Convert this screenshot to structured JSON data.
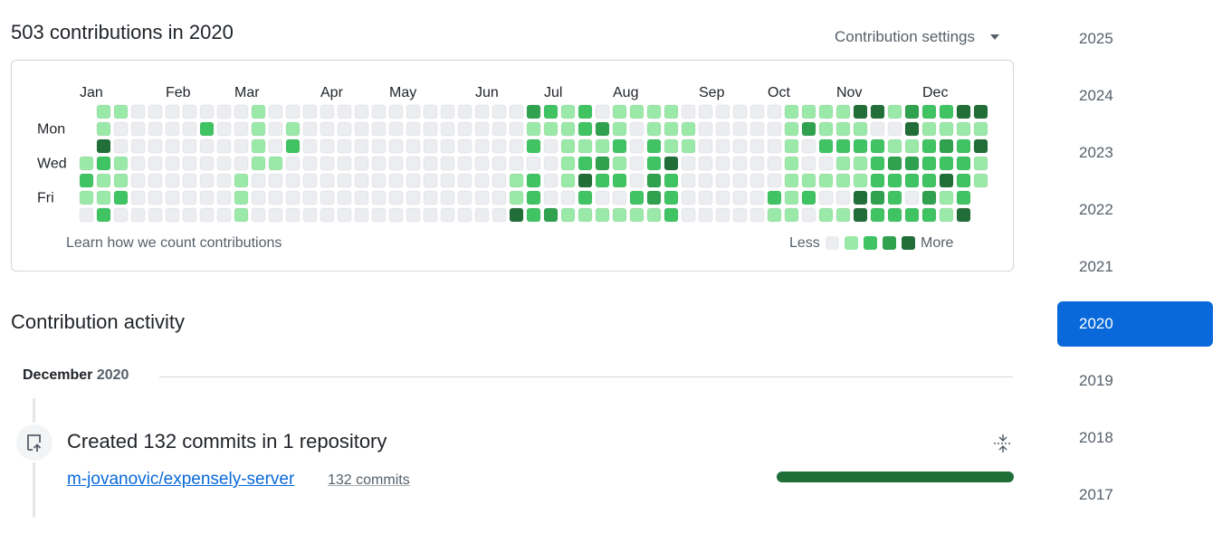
{
  "header": {
    "title": "503 contributions in 2020",
    "settings": "Contribution settings"
  },
  "calendar": {
    "months": [
      "Jan",
      "Feb",
      "Mar",
      "Apr",
      "May",
      "Jun",
      "Jul",
      "Aug",
      "Sep",
      "Oct",
      "Nov",
      "Dec"
    ],
    "weekdays": [
      null,
      "Mon",
      null,
      "Wed",
      null,
      "Fri",
      null
    ],
    "level_colors": [
      "#ebedf0",
      "#9be9a8",
      "#40c463",
      "#30a14e",
      "#216e39"
    ],
    "weeks": [
      [
        null,
        null,
        null,
        1,
        2,
        1,
        0
      ],
      [
        1,
        1,
        4,
        2,
        1,
        1,
        2
      ],
      [
        1,
        0,
        0,
        1,
        1,
        2,
        0
      ],
      [
        0,
        0,
        0,
        0,
        0,
        0,
        0
      ],
      [
        0,
        0,
        0,
        0,
        0,
        0,
        0
      ],
      [
        0,
        0,
        0,
        0,
        0,
        0,
        0
      ],
      [
        0,
        0,
        0,
        0,
        0,
        0,
        0
      ],
      [
        0,
        2,
        0,
        0,
        0,
        0,
        0
      ],
      [
        0,
        0,
        0,
        0,
        0,
        0,
        0
      ],
      [
        0,
        0,
        0,
        0,
        1,
        1,
        1
      ],
      [
        1,
        1,
        1,
        1,
        0,
        0,
        0
      ],
      [
        0,
        0,
        0,
        1,
        0,
        0,
        0
      ],
      [
        0,
        1,
        2,
        0,
        0,
        0,
        0
      ],
      [
        0,
        0,
        0,
        0,
        0,
        0,
        0
      ],
      [
        0,
        0,
        0,
        0,
        0,
        0,
        0
      ],
      [
        0,
        0,
        0,
        0,
        0,
        0,
        0
      ],
      [
        0,
        0,
        0,
        0,
        0,
        0,
        0
      ],
      [
        0,
        0,
        0,
        0,
        0,
        0,
        0
      ],
      [
        0,
        0,
        0,
        0,
        0,
        0,
        0
      ],
      [
        0,
        0,
        0,
        0,
        0,
        0,
        0
      ],
      [
        0,
        0,
        0,
        0,
        0,
        0,
        0
      ],
      [
        0,
        0,
        0,
        0,
        0,
        0,
        0
      ],
      [
        0,
        0,
        0,
        0,
        0,
        0,
        0
      ],
      [
        0,
        0,
        0,
        0,
        0,
        0,
        0
      ],
      [
        0,
        0,
        0,
        0,
        0,
        0,
        0
      ],
      [
        0,
        0,
        0,
        0,
        1,
        1,
        4
      ],
      [
        3,
        1,
        2,
        0,
        2,
        2,
        2
      ],
      [
        2,
        1,
        0,
        0,
        0,
        0,
        3
      ],
      [
        1,
        1,
        1,
        1,
        1,
        0,
        1
      ],
      [
        2,
        2,
        1,
        2,
        4,
        2,
        1
      ],
      [
        0,
        3,
        1,
        3,
        2,
        0,
        1
      ],
      [
        1,
        1,
        2,
        1,
        2,
        0,
        1
      ],
      [
        1,
        0,
        0,
        0,
        0,
        2,
        1
      ],
      [
        1,
        1,
        2,
        2,
        3,
        3,
        1
      ],
      [
        1,
        1,
        1,
        4,
        2,
        2,
        2
      ],
      [
        0,
        1,
        1,
        0,
        0,
        0,
        0
      ],
      [
        0,
        0,
        0,
        0,
        0,
        0,
        0
      ],
      [
        0,
        0,
        0,
        0,
        0,
        0,
        0
      ],
      [
        0,
        0,
        0,
        0,
        0,
        0,
        0
      ],
      [
        0,
        0,
        0,
        0,
        0,
        0,
        0
      ],
      [
        0,
        0,
        0,
        0,
        0,
        2,
        1
      ],
      [
        1,
        1,
        1,
        1,
        1,
        1,
        1
      ],
      [
        1,
        3,
        0,
        0,
        1,
        2,
        0
      ],
      [
        1,
        1,
        2,
        0,
        1,
        0,
        1
      ],
      [
        1,
        1,
        2,
        1,
        1,
        0,
        1
      ],
      [
        4,
        1,
        2,
        1,
        1,
        4,
        4
      ],
      [
        4,
        0,
        2,
        2,
        2,
        3,
        2
      ],
      [
        1,
        0,
        1,
        3,
        2,
        2,
        2
      ],
      [
        3,
        4,
        1,
        3,
        2,
        0,
        2
      ],
      [
        2,
        1,
        2,
        2,
        2,
        3,
        2
      ],
      [
        2,
        1,
        3,
        2,
        4,
        1,
        1
      ],
      [
        4,
        1,
        2,
        2,
        2,
        2,
        4
      ],
      [
        4,
        1,
        4,
        1,
        1,
        null,
        null
      ]
    ],
    "learn": "Learn how we count contributions",
    "less": "Less",
    "more": "More"
  },
  "activity": {
    "title": "Contribution activity",
    "month": "December",
    "year": 2020,
    "summary": "Created 132 commits in 1 repository",
    "repo": "m-jovanovic/expensely-server",
    "commits": "132 commits"
  },
  "years": [
    2025,
    2024,
    2023,
    2022,
    2021,
    2020,
    2019,
    2018,
    2017
  ],
  "selected_year": 2020
}
